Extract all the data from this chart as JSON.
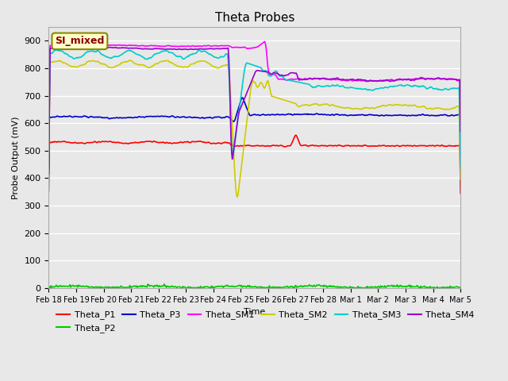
{
  "title": "Theta Probes",
  "xlabel": "Time",
  "ylabel": "Probe Output (mV)",
  "ylim": [
    0,
    950
  ],
  "yticks": [
    0,
    100,
    200,
    300,
    400,
    500,
    600,
    700,
    800,
    900
  ],
  "background_color": "#e8e8e8",
  "annotation_text": "SI_mixed",
  "annotation_color": "#8B0000",
  "annotation_bg": "#ffffcc",
  "annotation_edge": "#888800",
  "colors": {
    "Theta_P1": "#ff0000",
    "Theta_P2": "#00cc00",
    "Theta_P3": "#0000cc",
    "Theta_SM1": "#ff00ff",
    "Theta_SM2": "#cccc00",
    "Theta_SM3": "#00cccc",
    "Theta_SM4": "#9900cc"
  },
  "date_labels": [
    "Feb 18",
    "Feb 19",
    "Feb 20",
    "Feb 21",
    "Feb 22",
    "Feb 23",
    "Feb 24",
    "Feb 25",
    "Feb 26",
    "Feb 27",
    "Feb 28",
    "Mar 1",
    "Mar 2",
    "Mar 3",
    "Mar 4",
    "Mar 5"
  ],
  "n_points": 600,
  "event_idx": 262,
  "legend_order": [
    "Theta_P1",
    "Theta_P2",
    "Theta_P3",
    "Theta_SM1",
    "Theta_SM2",
    "Theta_SM3",
    "Theta_SM4"
  ]
}
